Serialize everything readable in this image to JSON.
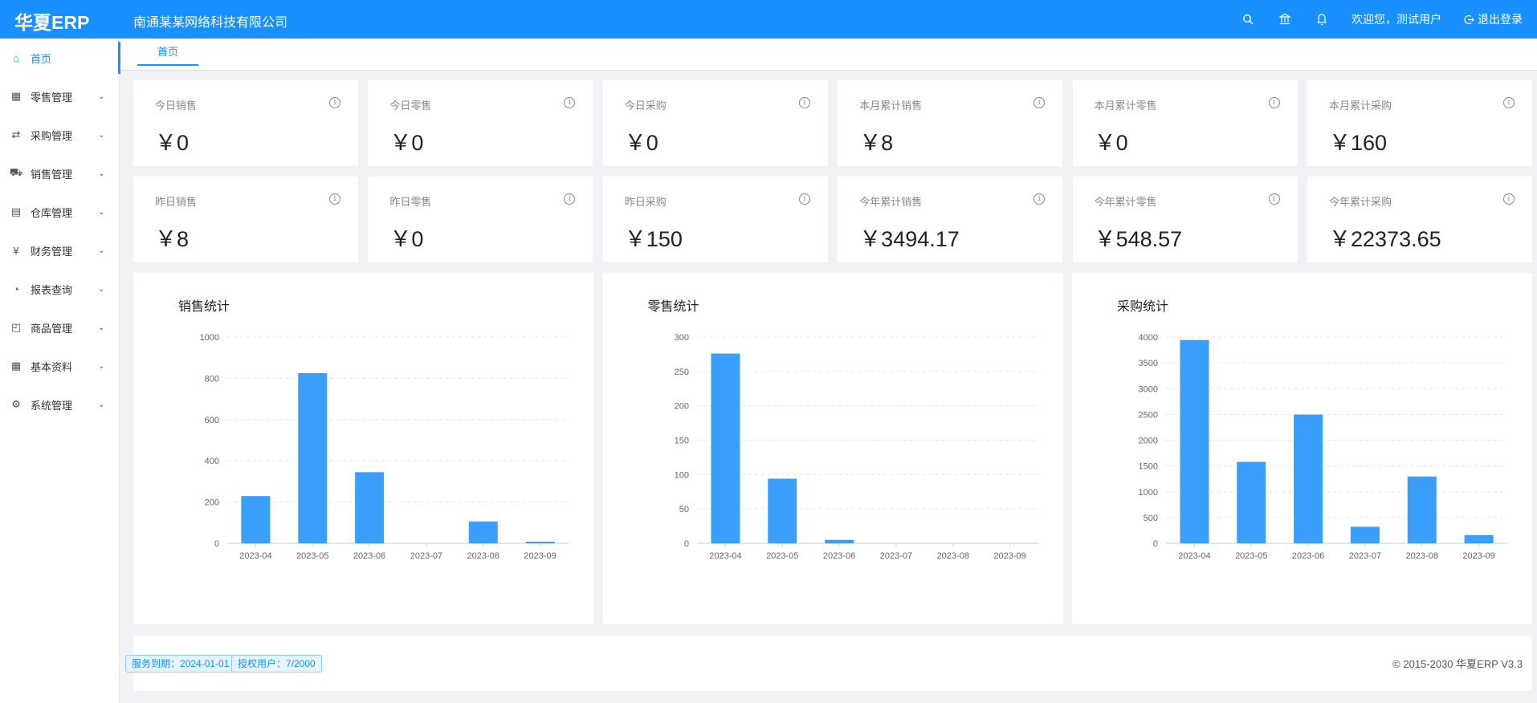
{
  "header": {
    "logo": "华夏ERP",
    "company": "南通某某网络科技有限公司",
    "welcome": "欢迎您，测试用户",
    "logout": "退出登录",
    "icons": [
      "search-icon",
      "bank-icon",
      "bell-icon",
      "logout-icon"
    ]
  },
  "sidebar": {
    "items": [
      {
        "label": "首页",
        "icon": "home-icon",
        "active": true
      },
      {
        "label": "零售管理",
        "icon": "gift-icon"
      },
      {
        "label": "采购管理",
        "icon": "swap-icon"
      },
      {
        "label": "销售管理",
        "icon": "cart-icon"
      },
      {
        "label": "仓库管理",
        "icon": "warehouse-icon"
      },
      {
        "label": "财务管理",
        "icon": "money-icon"
      },
      {
        "label": "报表查询",
        "icon": "pie-chart-icon"
      },
      {
        "label": "商品管理",
        "icon": "shopping-bag-icon"
      },
      {
        "label": "基本资料",
        "icon": "appstore-icon"
      },
      {
        "label": "系统管理",
        "icon": "setting-icon"
      }
    ]
  },
  "tabs": [
    {
      "label": "首页"
    }
  ],
  "stats": [
    {
      "label": "今日销售",
      "value": "￥0"
    },
    {
      "label": "今日零售",
      "value": "￥0"
    },
    {
      "label": "今日采购",
      "value": "￥0"
    },
    {
      "label": "本月累计销售",
      "value": "￥8"
    },
    {
      "label": "本月累计零售",
      "value": "￥0"
    },
    {
      "label": "本月累计采购",
      "value": "￥160"
    },
    {
      "label": "昨日销售",
      "value": "￥8"
    },
    {
      "label": "昨日零售",
      "value": "￥0"
    },
    {
      "label": "昨日采购",
      "value": "￥150"
    },
    {
      "label": "今年累计销售",
      "value": "￥3494.17"
    },
    {
      "label": "今年累计零售",
      "value": "￥548.57"
    },
    {
      "label": "今年累计采购",
      "value": "￥22373.65"
    }
  ],
  "chart_data": [
    {
      "type": "bar",
      "title": "销售统计",
      "categories": [
        "2023-04",
        "2023-05",
        "2023-06",
        "2023-07",
        "2023-08",
        "2023-09"
      ],
      "values": [
        229,
        825,
        345,
        0,
        106,
        8
      ],
      "ylim": [
        0,
        1000
      ],
      "yticks": [
        0,
        200,
        400,
        600,
        800,
        1000
      ],
      "grid": true,
      "color": "#3a9ffb"
    },
    {
      "type": "bar",
      "title": "零售统计",
      "categories": [
        "2023-04",
        "2023-05",
        "2023-06",
        "2023-07",
        "2023-08",
        "2023-09"
      ],
      "values": [
        276,
        94,
        5,
        0,
        0,
        0
      ],
      "ylim": [
        0,
        300
      ],
      "yticks": [
        0,
        50,
        100,
        150,
        200,
        250,
        300
      ],
      "grid": true,
      "color": "#3a9ffb"
    },
    {
      "type": "bar",
      "title": "采购统计",
      "categories": [
        "2023-04",
        "2023-05",
        "2023-06",
        "2023-07",
        "2023-08",
        "2023-09"
      ],
      "values": [
        3943,
        1580,
        2497,
        321,
        1295,
        160
      ],
      "ylim": [
        0,
        4000
      ],
      "yticks": [
        0,
        500,
        1000,
        1500,
        2000,
        2500,
        3000,
        3500,
        4000
      ],
      "grid": true,
      "color": "#3a9ffb"
    }
  ],
  "footer": {
    "service_expiry": "服务到期：2024-01-01",
    "licensed_users": "授权用户：7/2000",
    "copyright": "© 2015-2030 华夏ERP V3.3"
  },
  "colors": {
    "primary": "#1890ff",
    "background": "#f0f2f5"
  }
}
